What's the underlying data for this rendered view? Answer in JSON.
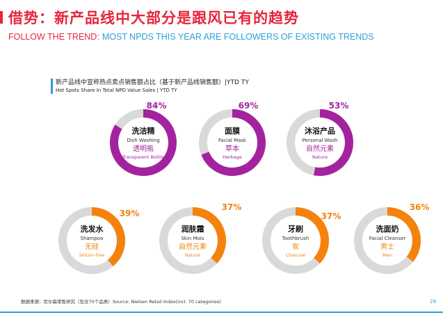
{
  "header": {
    "title": "借势：新产品线中大部分是跟风已有的趋势",
    "subtitle_lead": "FOLLOW THE TREND:",
    "subtitle_rest": "MOST NPDS THIS YEAR ARE FOLLOWERS OF EXISTING TRENDS"
  },
  "colors": {
    "brand_red": "#e8243c",
    "accent_blue": "#2b9fd8",
    "purple": "#a3239e",
    "orange": "#f5820d",
    "track_grey": "#d9d9d9"
  },
  "chart_data": {
    "type": "donut",
    "title": "新产品线中宣称热点卖点销售额占比（基于新产品线销售额）|YTD TY",
    "subtitle": "Hot Spots Share In Total NPD Value Sales | YTD TY",
    "unit": "%",
    "items": [
      {
        "category_cn": "洗洁精",
        "category_en": "Dish Washing",
        "claim_cn": "透明瓶",
        "claim_en": "Transparent Bottle",
        "value": 84,
        "label": "84%",
        "color": "purple"
      },
      {
        "category_cn": "面膜",
        "category_en": "Facial Mask",
        "claim_cn": "草本",
        "claim_en": "Herbage",
        "value": 69,
        "label": "69%",
        "color": "purple"
      },
      {
        "category_cn": "沐浴产品",
        "category_en": "Personal Wash",
        "claim_cn": "自然元素",
        "claim_en": "Nature",
        "value": 53,
        "label": "53%",
        "color": "purple"
      },
      {
        "category_cn": "洗发水",
        "category_en": "Shampoo",
        "claim_cn": "无硅",
        "claim_en": "Silicon-free",
        "value": 39,
        "label": "39%",
        "color": "orange"
      },
      {
        "category_cn": "润肤霜",
        "category_en": "Skin Mois",
        "claim_cn": "自然元素",
        "claim_en": "Nature",
        "value": 37,
        "label": "37%",
        "color": "orange"
      },
      {
        "category_cn": "牙刷",
        "category_en": "Toothbrush",
        "claim_cn": "炭",
        "claim_en": "Charcoal",
        "value": 37,
        "label": "37%",
        "color": "orange"
      },
      {
        "category_cn": "洗面奶",
        "category_en": "Facial Cleanser",
        "claim_cn": "男士",
        "claim_en": "Men",
        "value": 36,
        "label": "36%",
        "color": "orange"
      }
    ]
  },
  "footer": {
    "source": "数据来源：尼尔森零售研究（包含70个品类）Source: Nielsen Retail Index(incl. 70 categories)",
    "page_number": "29"
  }
}
